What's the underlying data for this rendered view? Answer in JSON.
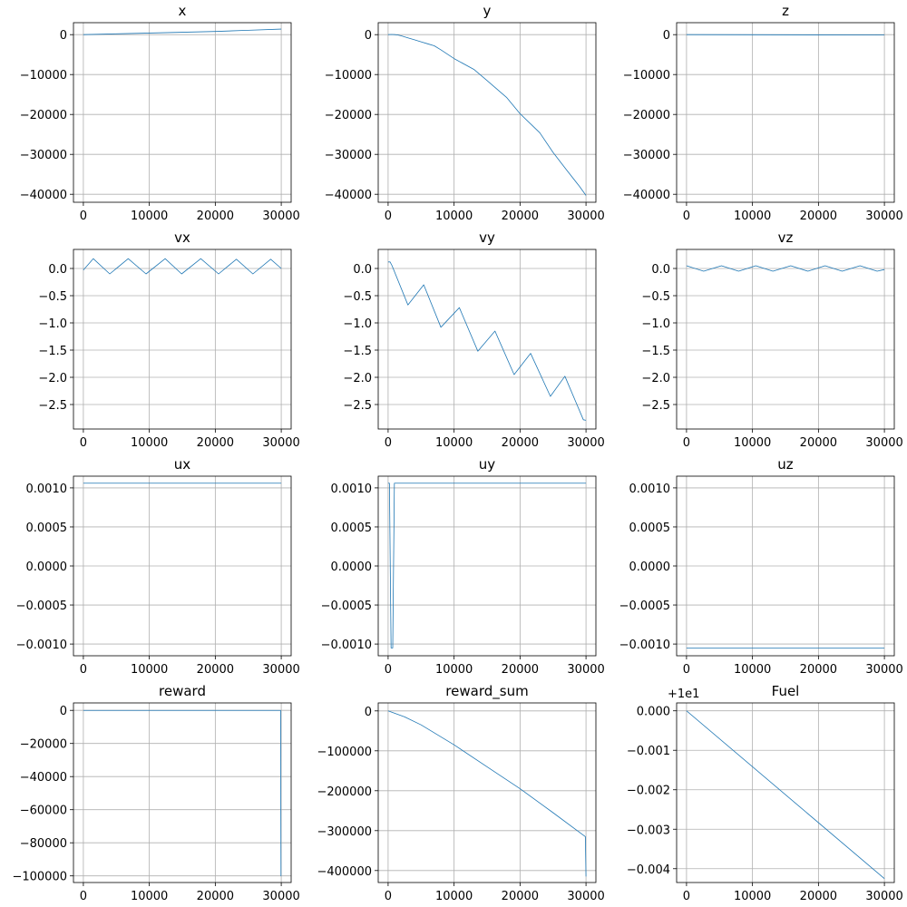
{
  "chart_data": [
    {
      "type": "line",
      "title": "x",
      "xlim": [
        -1500,
        31500
      ],
      "ylim": [
        -42000,
        3000
      ],
      "xticks": [
        0,
        10000,
        20000,
        30000
      ],
      "xtick_labels": [
        "0",
        "10000",
        "20000",
        "30000"
      ],
      "yticks": [
        0,
        -10000,
        -20000,
        -30000,
        -40000
      ],
      "ytick_labels": [
        "0",
        "−10000",
        "−20000",
        "−30000",
        "−40000"
      ],
      "grid": true,
      "series_color": "#1f77b4",
      "x": [
        0,
        5000,
        10000,
        15000,
        20000,
        25000,
        30000
      ],
      "y": [
        0,
        200,
        400,
        600,
        800,
        1100,
        1400
      ]
    },
    {
      "type": "line",
      "title": "y",
      "xlim": [
        -1500,
        31500
      ],
      "ylim": [
        -42000,
        3000
      ],
      "xticks": [
        0,
        10000,
        20000,
        30000
      ],
      "xtick_labels": [
        "0",
        "10000",
        "20000",
        "30000"
      ],
      "yticks": [
        0,
        -10000,
        -20000,
        -30000,
        -40000
      ],
      "ytick_labels": [
        "0",
        "−10000",
        "−20000",
        "−30000",
        "−40000"
      ],
      "grid": true,
      "series_color": "#1f77b4",
      "x": [
        0,
        500,
        1000,
        1500,
        2000,
        3000,
        4000,
        5000,
        6000,
        7000,
        8000,
        10000,
        13000,
        15000,
        18000,
        20000,
        23000,
        25000,
        27000,
        29000,
        30000
      ],
      "y": [
        0,
        50,
        0,
        -100,
        -300,
        -800,
        -1300,
        -1800,
        -2300,
        -2800,
        -3800,
        -6000,
        -8700,
        -11500,
        -15800,
        -19800,
        -24600,
        -29500,
        -33800,
        -38000,
        -40300
      ]
    },
    {
      "type": "line",
      "title": "z",
      "xlim": [
        -1500,
        31500
      ],
      "ylim": [
        -42000,
        3000
      ],
      "xticks": [
        0,
        10000,
        20000,
        30000
      ],
      "xtick_labels": [
        "0",
        "10000",
        "20000",
        "30000"
      ],
      "yticks": [
        0,
        -10000,
        -20000,
        -30000,
        -40000
      ],
      "ytick_labels": [
        "0",
        "−10000",
        "−20000",
        "−30000",
        "−40000"
      ],
      "grid": true,
      "series_color": "#1f77b4",
      "x": [
        0,
        10000,
        20000,
        30000
      ],
      "y": [
        0,
        -30,
        -60,
        -90
      ]
    },
    {
      "type": "line",
      "title": "vx",
      "xlim": [
        -1500,
        31500
      ],
      "ylim": [
        -2.95,
        0.35
      ],
      "xticks": [
        0,
        10000,
        20000,
        30000
      ],
      "xtick_labels": [
        "0",
        "10000",
        "20000",
        "30000"
      ],
      "yticks": [
        0,
        -0.5,
        -1,
        -1.5,
        -2,
        -2.5
      ],
      "ytick_labels": [
        "0.0",
        "−0.5",
        "−1.0",
        "−1.5",
        "−2.0",
        "−2.5"
      ],
      "grid": true,
      "series_color": "#1f77b4",
      "x": [
        0,
        1500,
        4000,
        6800,
        9500,
        12400,
        14900,
        17800,
        20500,
        23200,
        25700,
        28400,
        30000
      ],
      "y": [
        -0.03,
        0.18,
        -0.1,
        0.18,
        -0.1,
        0.18,
        -0.1,
        0.18,
        -0.1,
        0.17,
        -0.1,
        0.17,
        0.0
      ]
    },
    {
      "type": "line",
      "title": "vy",
      "xlim": [
        -1500,
        31500
      ],
      "ylim": [
        -2.95,
        0.35
      ],
      "xticks": [
        0,
        10000,
        20000,
        30000
      ],
      "xtick_labels": [
        "0",
        "10000",
        "20000",
        "30000"
      ],
      "yticks": [
        0,
        -0.5,
        -1,
        -1.5,
        -2,
        -2.5
      ],
      "ytick_labels": [
        "0.0",
        "−0.5",
        "−1.0",
        "−1.5",
        "−2.0",
        "−2.5"
      ],
      "grid": true,
      "series_color": "#1f77b4",
      "x": [
        0,
        300,
        600,
        3000,
        5400,
        8000,
        10800,
        13600,
        16200,
        19100,
        21600,
        24600,
        26800,
        29600,
        30000
      ],
      "y": [
        0.12,
        0.12,
        0.05,
        -0.67,
        -0.3,
        -1.08,
        -0.72,
        -1.52,
        -1.15,
        -1.95,
        -1.56,
        -2.35,
        -1.98,
        -2.78,
        -2.79
      ]
    },
    {
      "type": "line",
      "title": "vz",
      "xlim": [
        -1500,
        31500
      ],
      "ylim": [
        -2.95,
        0.35
      ],
      "xticks": [
        0,
        10000,
        20000,
        30000
      ],
      "xtick_labels": [
        "0",
        "10000",
        "20000",
        "30000"
      ],
      "yticks": [
        0,
        -0.5,
        -1,
        -1.5,
        -2,
        -2.5
      ],
      "ytick_labels": [
        "0.0",
        "−0.5",
        "−1.0",
        "−1.5",
        "−2.0",
        "−2.5"
      ],
      "grid": true,
      "series_color": "#1f77b4",
      "x": [
        0,
        2600,
        5300,
        7900,
        10500,
        13100,
        15800,
        18400,
        21000,
        23600,
        26300,
        28900,
        30000
      ],
      "y": [
        0.05,
        -0.05,
        0.05,
        -0.05,
        0.05,
        -0.05,
        0.05,
        -0.05,
        0.05,
        -0.05,
        0.05,
        -0.05,
        -0.02
      ]
    },
    {
      "type": "line",
      "title": "ux",
      "xlim": [
        -1500,
        31500
      ],
      "ylim": [
        -0.00115,
        0.00115
      ],
      "xticks": [
        0,
        10000,
        20000,
        30000
      ],
      "xtick_labels": [
        "0",
        "10000",
        "20000",
        "30000"
      ],
      "yticks": [
        0.001,
        0.0005,
        0,
        -0.0005,
        -0.001
      ],
      "ytick_labels": [
        "0.0010",
        "0.0005",
        "0.0000",
        "−0.0005",
        "−0.0010"
      ],
      "grid": true,
      "series_color": "#1f77b4",
      "x": [
        0,
        30000
      ],
      "y": [
        0.00106,
        0.00106
      ]
    },
    {
      "type": "line",
      "title": "uy",
      "xlim": [
        -1500,
        31500
      ],
      "ylim": [
        -0.00115,
        0.00115
      ],
      "xticks": [
        0,
        10000,
        20000,
        30000
      ],
      "xtick_labels": [
        "0",
        "10000",
        "20000",
        "30000"
      ],
      "yticks": [
        0.001,
        0.0005,
        0,
        -0.0005,
        -0.001
      ],
      "ytick_labels": [
        "0.0010",
        "0.0005",
        "0.0000",
        "−0.0005",
        "−0.0010"
      ],
      "grid": true,
      "series_color": "#1f77b4",
      "x": [
        0,
        200,
        450,
        700,
        950,
        30000
      ],
      "y": [
        0.00106,
        0.00106,
        -0.00105,
        -0.00105,
        0.00106,
        0.00106
      ]
    },
    {
      "type": "line",
      "title": "uz",
      "xlim": [
        -1500,
        31500
      ],
      "ylim": [
        -0.00115,
        0.00115
      ],
      "xticks": [
        0,
        10000,
        20000,
        30000
      ],
      "xtick_labels": [
        "0",
        "10000",
        "20000",
        "30000"
      ],
      "yticks": [
        0.001,
        0.0005,
        0,
        -0.0005,
        -0.001
      ],
      "ytick_labels": [
        "0.0010",
        "0.0005",
        "0.0000",
        "−0.0005",
        "−0.0010"
      ],
      "grid": true,
      "series_color": "#1f77b4",
      "x": [
        0,
        30000
      ],
      "y": [
        -0.00105,
        -0.00105
      ]
    },
    {
      "type": "line",
      "title": "reward",
      "xlim": [
        -1500,
        31500
      ],
      "ylim": [
        -104000,
        4500
      ],
      "xticks": [
        0,
        10000,
        20000,
        30000
      ],
      "xtick_labels": [
        "0",
        "10000",
        "20000",
        "30000"
      ],
      "yticks": [
        0,
        -20000,
        -40000,
        -60000,
        -80000,
        -100000
      ],
      "ytick_labels": [
        "0",
        "−20000",
        "−40000",
        "−60000",
        "−80000",
        "−100000"
      ],
      "grid": true,
      "series_color": "#1f77b4",
      "x": [
        0,
        29900,
        29960,
        30000
      ],
      "y": [
        -20,
        -25,
        -100000,
        -100000
      ]
    },
    {
      "type": "line",
      "title": "reward_sum",
      "xlim": [
        -1500,
        31500
      ],
      "ylim": [
        -430000,
        20000
      ],
      "xticks": [
        0,
        10000,
        20000,
        30000
      ],
      "xtick_labels": [
        "0",
        "10000",
        "20000",
        "30000"
      ],
      "yticks": [
        0,
        -100000,
        -200000,
        -300000,
        -400000
      ],
      "ytick_labels": [
        "0",
        "−100000",
        "−200000",
        "−300000",
        "−400000"
      ],
      "grid": true,
      "series_color": "#1f77b4",
      "x": [
        0,
        2500,
        5000,
        10000,
        15000,
        20000,
        25000,
        29900,
        30000
      ],
      "y": [
        0,
        -15000,
        -35000,
        -85000,
        -140000,
        -195000,
        -255000,
        -315000,
        -415000
      ]
    },
    {
      "type": "line",
      "title": "Fuel",
      "offset_label": "+1e1",
      "xlim": [
        -1500,
        31500
      ],
      "ylim": [
        -0.00435,
        0.0002
      ],
      "xticks": [
        0,
        10000,
        20000,
        30000
      ],
      "xtick_labels": [
        "0",
        "10000",
        "20000",
        "30000"
      ],
      "yticks": [
        0,
        -0.001,
        -0.002,
        -0.003,
        -0.004
      ],
      "ytick_labels": [
        "0.000",
        "−0.001",
        "−0.002",
        "−0.003",
        "−0.004"
      ],
      "grid": true,
      "series_color": "#1f77b4",
      "x": [
        0,
        30000
      ],
      "y": [
        0,
        -0.00425
      ]
    }
  ]
}
